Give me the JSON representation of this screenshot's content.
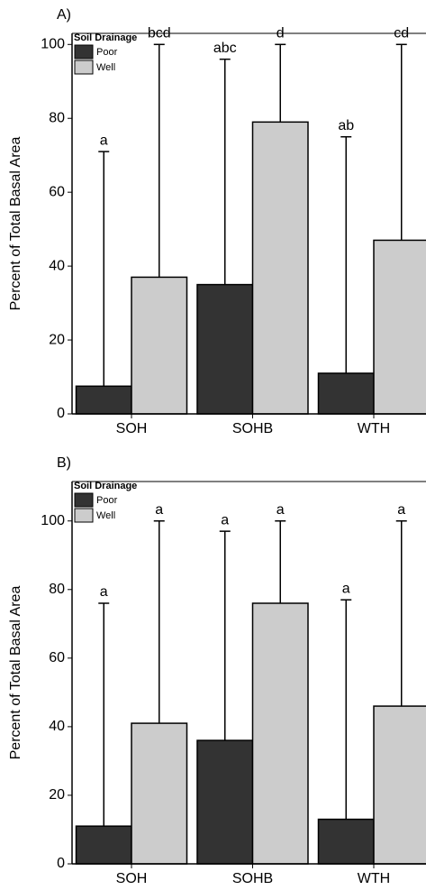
{
  "chart_data": [
    {
      "type": "bar",
      "panel_label": "A)",
      "y_label": "Percent of Total Basal Area",
      "legend_title": "Soil Drainage",
      "categories": [
        "SOH",
        "SOHB",
        "WTH"
      ],
      "series": [
        {
          "name": "Poor",
          "color": "#333333",
          "values": [
            7.5,
            35,
            11
          ],
          "errors": [
            63.5,
            61,
            64
          ],
          "annotations": [
            "a",
            "abc",
            "ab"
          ]
        },
        {
          "name": "Well",
          "color": "#cccccc",
          "values": [
            37,
            79,
            47
          ],
          "errors": [
            63,
            21,
            53
          ],
          "annotations": [
            "bcd",
            "d",
            "cd"
          ]
        }
      ],
      "ylim": [
        0,
        103
      ],
      "yticks": [
        0,
        20,
        40,
        60,
        80,
        100
      ]
    },
    {
      "type": "bar",
      "panel_label": "B)",
      "y_label": "Percent of Total Basal Area",
      "legend_title": "Soil Drainage",
      "categories": [
        "SOH",
        "SOHB",
        "WTH"
      ],
      "series": [
        {
          "name": "Poor",
          "color": "#333333",
          "values": [
            11,
            36,
            13
          ],
          "errors": [
            65,
            61,
            64
          ],
          "annotations": [
            "a",
            "a",
            "a"
          ]
        },
        {
          "name": "Well",
          "color": "#cccccc",
          "values": [
            41,
            76,
            46
          ],
          "errors": [
            59,
            24,
            54
          ],
          "annotations": [
            "a",
            "a",
            "a"
          ]
        }
      ],
      "ylim": [
        0,
        111.5
      ],
      "yticks": [
        0,
        20,
        40,
        60,
        80,
        100
      ]
    }
  ]
}
